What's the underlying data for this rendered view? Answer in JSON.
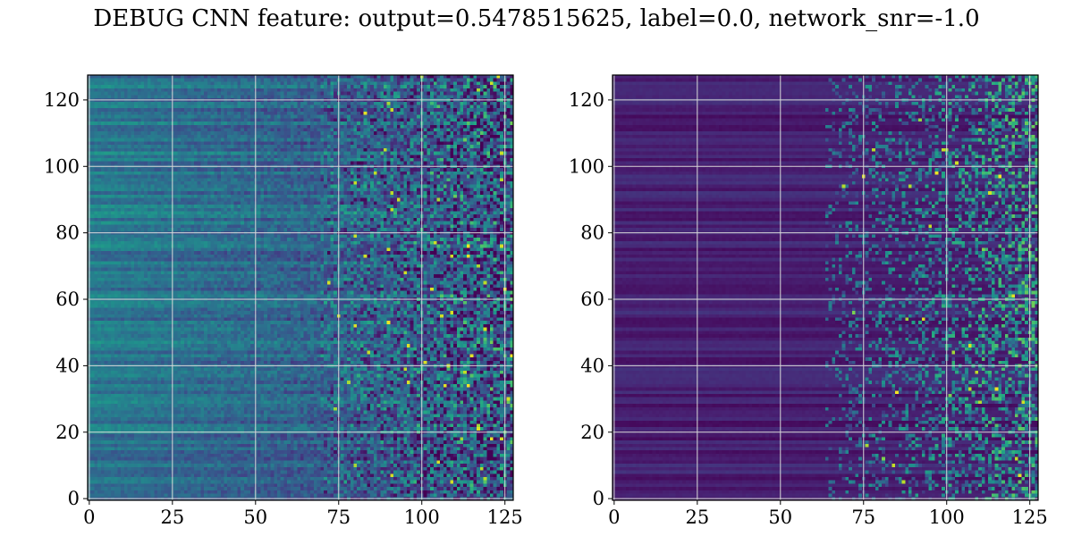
{
  "title": "DEBUG CNN feature: output=0.5478515625, label=0.0, network_snr=-1.0",
  "chart_data": [
    {
      "type": "heatmap",
      "colormap": "viridis",
      "rows": 128,
      "cols": 128,
      "xlim": [
        -0.5,
        127.5
      ],
      "ylim": [
        127.5,
        -0.5
      ],
      "xticks": [
        0,
        25,
        50,
        75,
        100,
        125
      ],
      "yticks": [
        0,
        20,
        40,
        60,
        80,
        100,
        120
      ],
      "xtick_labels": [
        "0",
        "25",
        "50",
        "75",
        "100",
        "125"
      ],
      "ytick_labels": [
        "0",
        "20",
        "40",
        "60",
        "80",
        "100",
        "120"
      ],
      "grid": true,
      "grid_color": "#d9d9d9"
    },
    {
      "type": "heatmap",
      "colormap": "viridis",
      "rows": 128,
      "cols": 128,
      "xlim": [
        -0.5,
        127.5
      ],
      "ylim": [
        127.5,
        -0.5
      ],
      "xticks": [
        0,
        25,
        50,
        75,
        100,
        125
      ],
      "yticks": [
        0,
        20,
        40,
        60,
        80,
        100,
        120
      ],
      "xtick_labels": [
        "0",
        "25",
        "50",
        "75",
        "100",
        "125"
      ],
      "ytick_labels": [
        "0",
        "20",
        "40",
        "60",
        "80",
        "100",
        "120"
      ],
      "grid": true,
      "grid_color": "#d9d9d9"
    }
  ]
}
